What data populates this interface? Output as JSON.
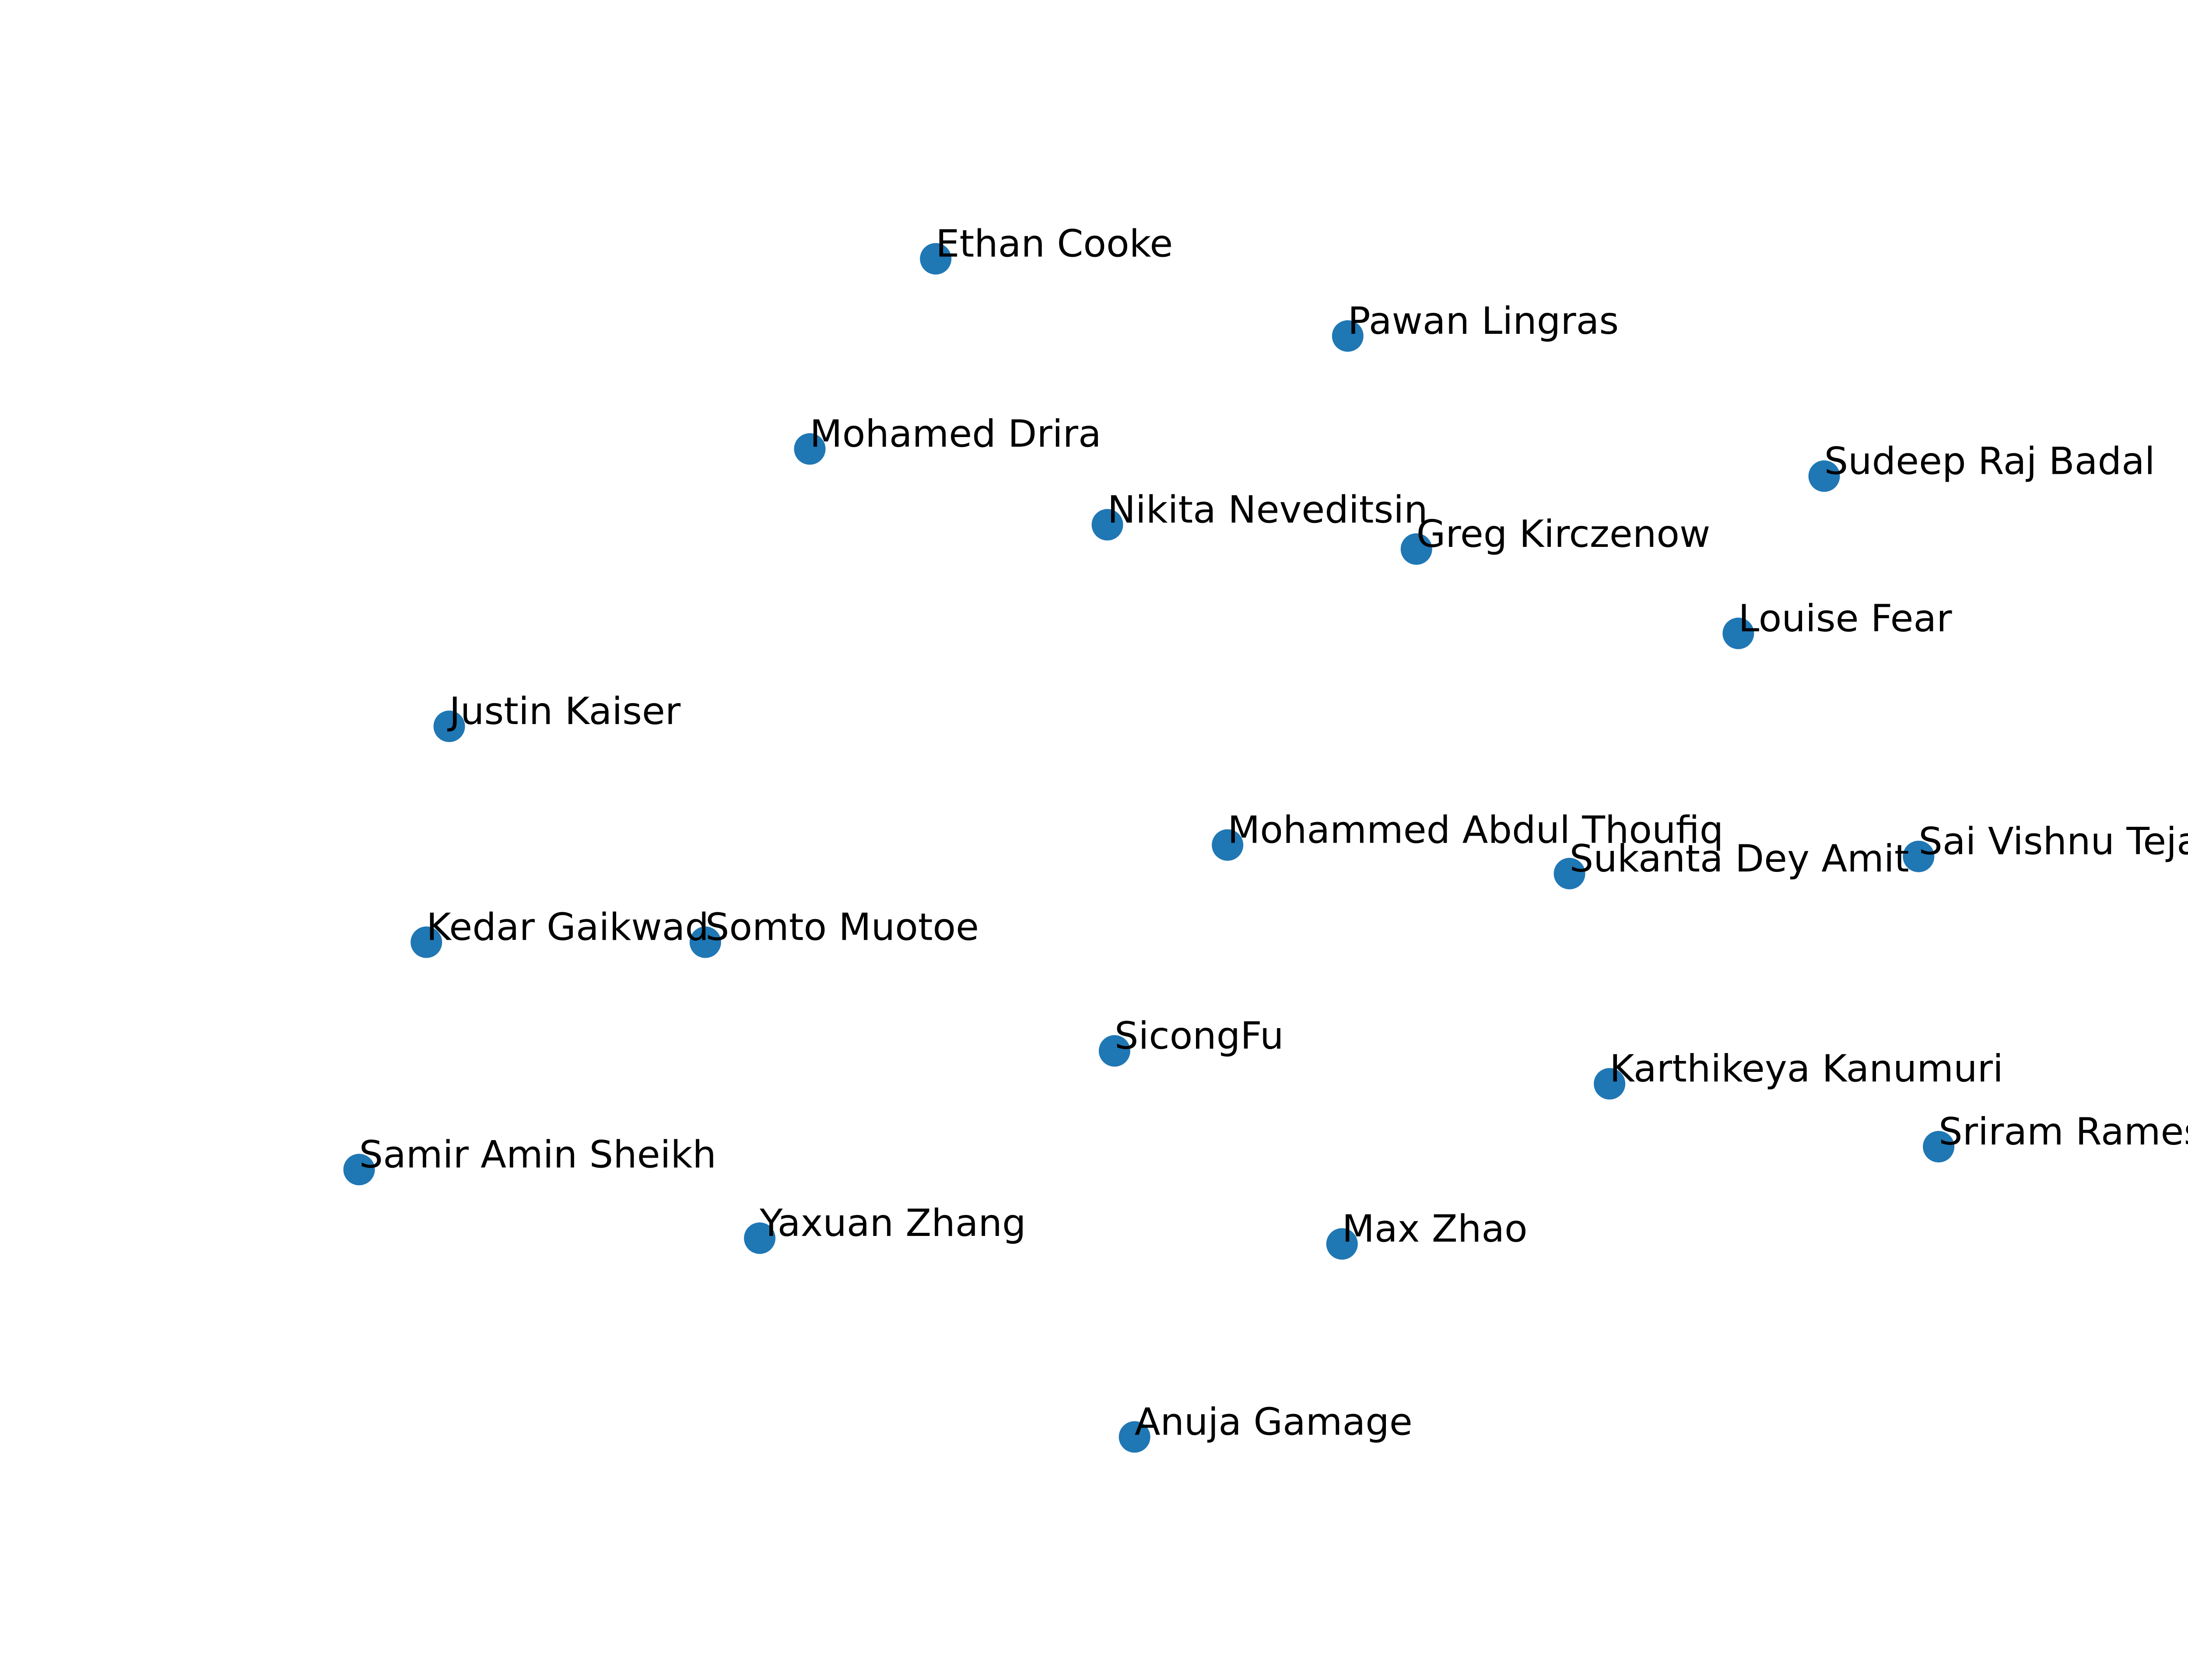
{
  "chart_data": {
    "type": "scatter",
    "title": "",
    "xlabel": "",
    "ylabel": "",
    "xlim": [
      0,
      1566
    ],
    "ylim": [
      1175,
      0
    ],
    "grid": false,
    "axes_visible": false,
    "marker_color": "#1f77b4",
    "label_color": "#000000",
    "points": [
      {
        "label": "Ethan Cooke",
        "x": 654,
        "y": 181
      },
      {
        "label": "Pawan Lingras",
        "x": 942,
        "y": 235
      },
      {
        "label": "Mohamed Drira",
        "x": 566,
        "y": 314
      },
      {
        "label": "Sudeep Raj Badal",
        "x": 1275,
        "y": 333
      },
      {
        "label": "Nikita Neveditsin",
        "x": 774,
        "y": 367
      },
      {
        "label": "Greg Kirczenow",
        "x": 990,
        "y": 384
      },
      {
        "label": "Louise Fear",
        "x": 1215,
        "y": 443
      },
      {
        "label": "Justin Kaiser",
        "x": 314,
        "y": 508
      },
      {
        "label": "Mohammed Abdul Thoufiq",
        "x": 858,
        "y": 591
      },
      {
        "label": "Sai Vishnu Teja R",
        "x": 1341,
        "y": 599
      },
      {
        "label": "Sukanta Dey Amit",
        "x": 1097,
        "y": 611
      },
      {
        "label": "Kedar Gaikwad",
        "x": 298,
        "y": 659
      },
      {
        "label": "Somto Muotoe",
        "x": 493,
        "y": 659
      },
      {
        "label": "SicongFu",
        "x": 779,
        "y": 735
      },
      {
        "label": "Karthikeya Kanumuri",
        "x": 1125,
        "y": 758
      },
      {
        "label": "Sriram Ramesh",
        "x": 1355,
        "y": 802
      },
      {
        "label": "Samir Amin Sheikh",
        "x": 251,
        "y": 818
      },
      {
        "label": "Yaxuan Zhang",
        "x": 531,
        "y": 866
      },
      {
        "label": "Max Zhao",
        "x": 938,
        "y": 870
      },
      {
        "label": "Anuja Gamage",
        "x": 793,
        "y": 1005
      }
    ]
  }
}
